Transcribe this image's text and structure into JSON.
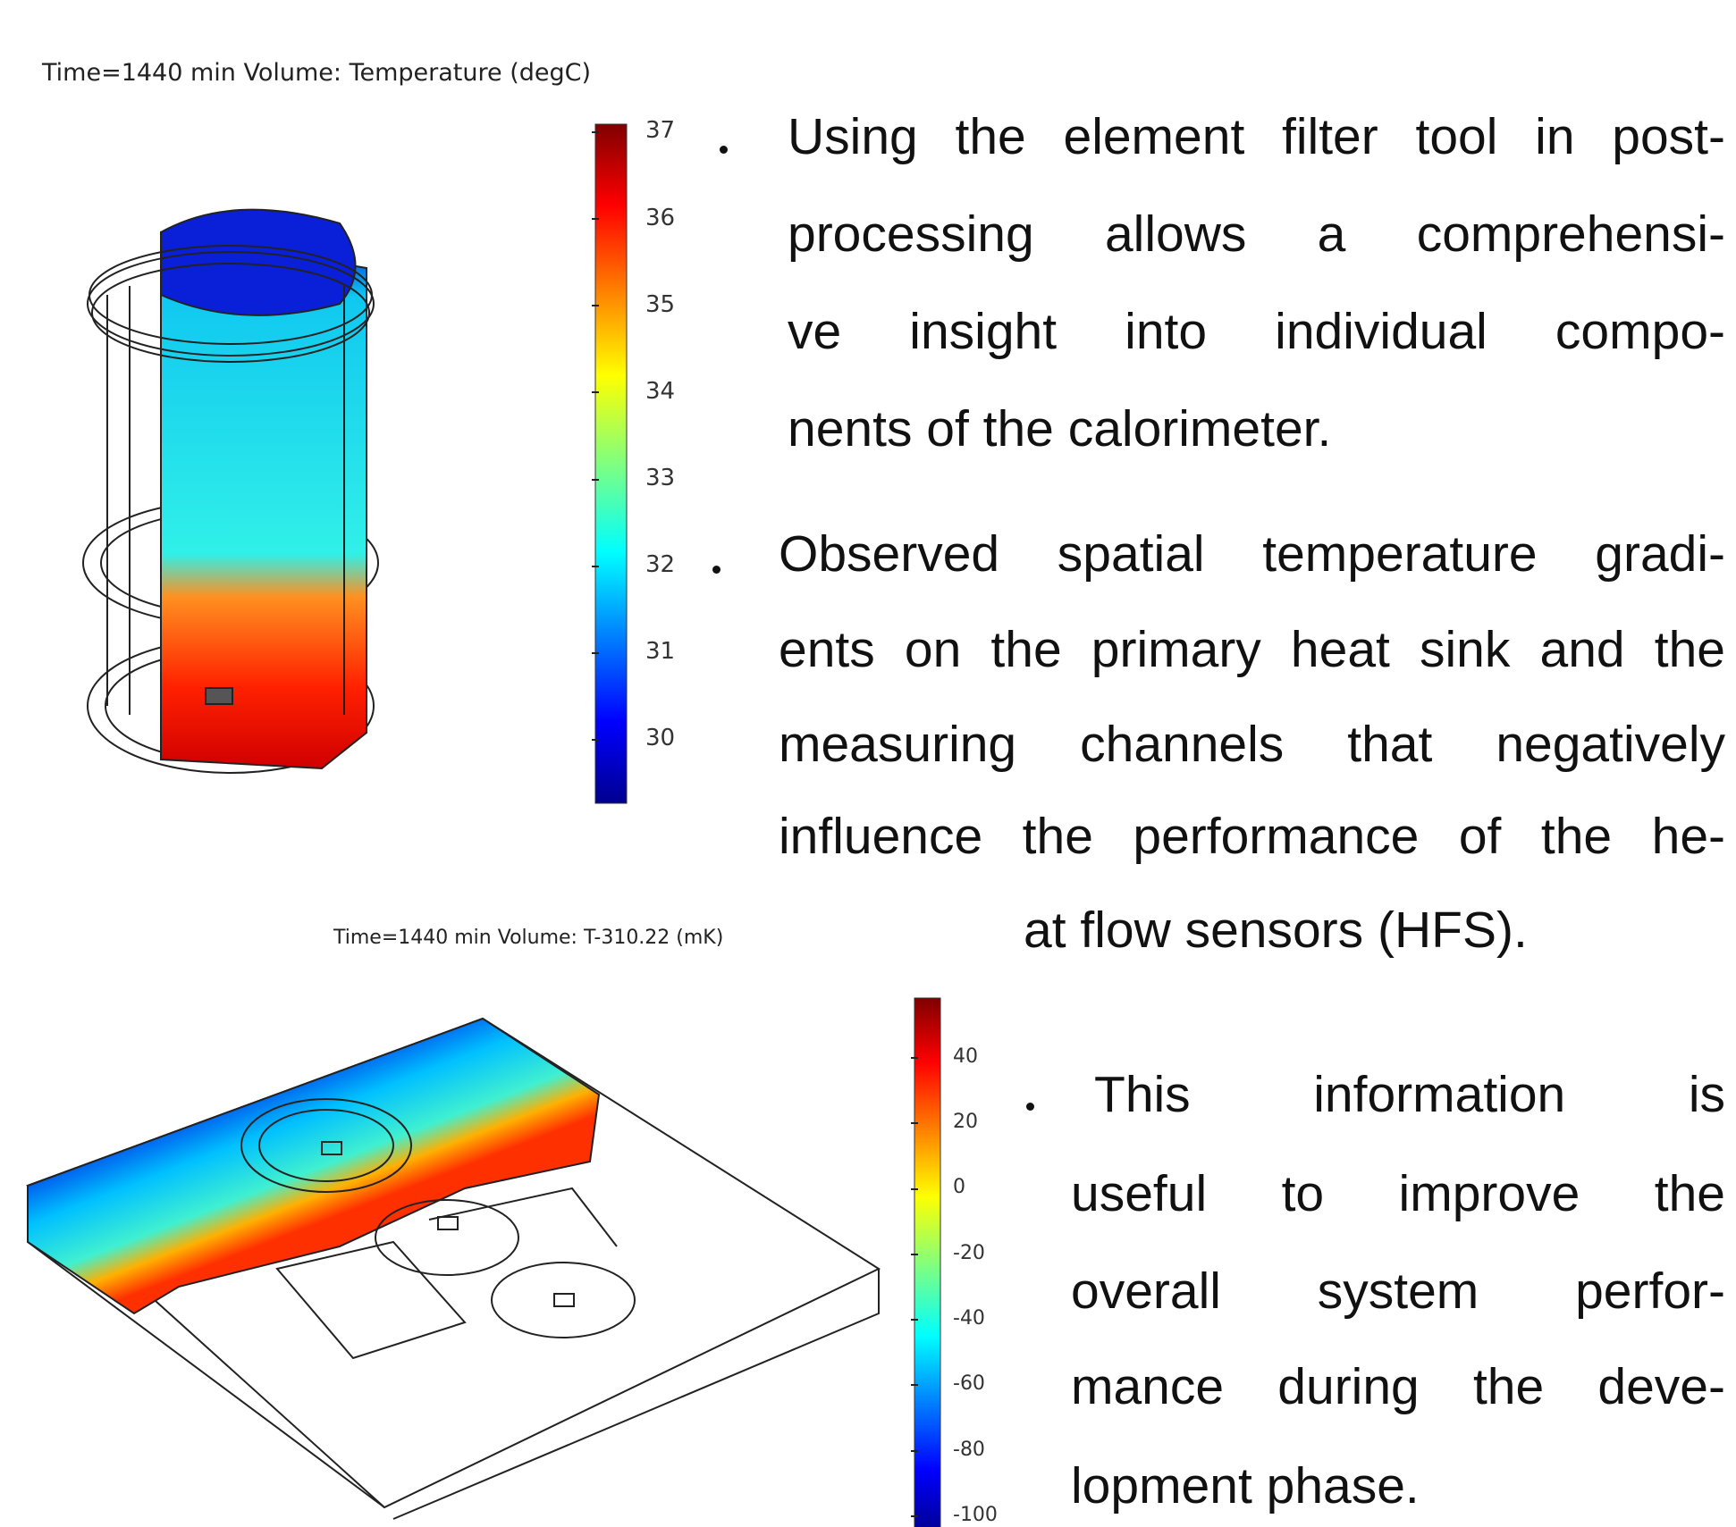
{
  "top_plot": {
    "caption": "Time=1440 min   Volume: Temperature (degC)",
    "colorbar_ticks": [
      37,
      36,
      35,
      34,
      33,
      32,
      31,
      30
    ]
  },
  "bottom_plot": {
    "caption": "Time=1440 min   Volume: T-310.22 (mK)",
    "colorbar_ticks": [
      40,
      20,
      0,
      -20,
      -40,
      -60,
      -80,
      -100
    ]
  },
  "bullets": [
    {
      "lines": [
        "Using the element filter tool in post-",
        "processing allows a comprehensi-",
        "ve insight into individual compo-",
        "nents of the calorimeter."
      ]
    },
    {
      "lines": [
        "Observed spatial temperature gradi-",
        "ents on the primary heat sink and the",
        "measuring channels that negatively",
        "influence the performance of the he-",
        "at flow sensors  (HFS)."
      ]
    },
    {
      "lines": [
        "This information is",
        "useful to improve the",
        "overall system perfor-",
        "mance during the deve-",
        "lopment phase."
      ]
    }
  ]
}
